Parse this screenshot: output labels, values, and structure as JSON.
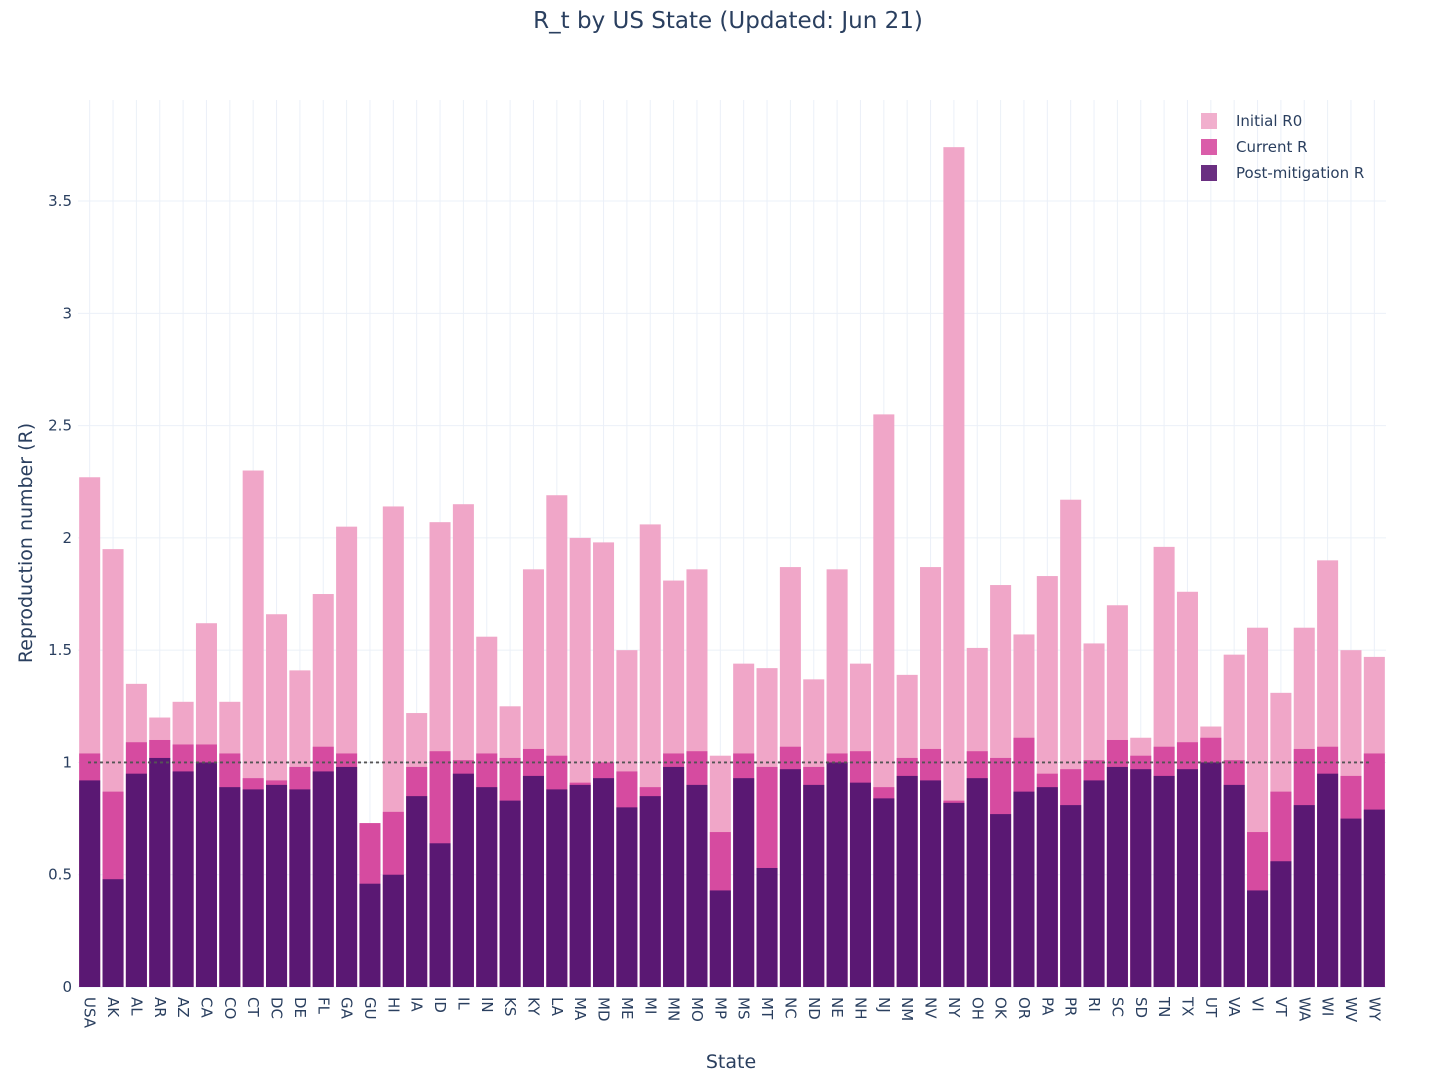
{
  "chart_data": {
    "type": "bar",
    "barmode": "overlay",
    "title": "R_t by US State (Updated: Jun 21)",
    "xlabel": "State",
    "ylabel": "Reproduction number (R)",
    "ylim": [
      0,
      3.95
    ],
    "yticks": [
      0,
      0.5,
      1,
      1.5,
      2,
      2.5,
      3,
      3.5
    ],
    "ytick_labels": [
      "0",
      "0.5",
      "1",
      "1.5",
      "2",
      "2.5",
      "3",
      "3.5"
    ],
    "reference_line": {
      "y": 1,
      "style": "dotted"
    },
    "grid": true,
    "legend_position": "top-right",
    "categories": [
      "USA",
      "AK",
      "AL",
      "AR",
      "AZ",
      "CA",
      "CO",
      "CT",
      "DC",
      "DE",
      "FL",
      "GA",
      "GU",
      "HI",
      "IA",
      "ID",
      "IL",
      "IN",
      "KS",
      "KY",
      "LA",
      "MA",
      "MD",
      "ME",
      "MI",
      "MN",
      "MO",
      "MP",
      "MS",
      "MT",
      "NC",
      "ND",
      "NE",
      "NH",
      "NJ",
      "NM",
      "NV",
      "NY",
      "OH",
      "OK",
      "OR",
      "PA",
      "PR",
      "RI",
      "SC",
      "SD",
      "TN",
      "TX",
      "UT",
      "VA",
      "VI",
      "VT",
      "WA",
      "WI",
      "WV",
      "WY"
    ],
    "series": [
      {
        "name": "Initial R0",
        "color": "#f0a6c8",
        "values": [
          2.27,
          1.95,
          1.35,
          1.2,
          1.27,
          1.62,
          1.27,
          2.3,
          1.66,
          1.41,
          1.75,
          2.05,
          0.72,
          2.14,
          1.22,
          2.07,
          2.15,
          1.56,
          1.25,
          1.86,
          2.19,
          2.0,
          1.98,
          1.5,
          2.06,
          1.81,
          1.86,
          1.03,
          1.44,
          1.42,
          1.87,
          1.37,
          1.86,
          1.44,
          2.55,
          1.39,
          1.87,
          3.74,
          1.51,
          1.79,
          1.57,
          1.83,
          2.17,
          1.53,
          1.7,
          1.11,
          1.96,
          1.76,
          1.16,
          1.48,
          1.6,
          1.31,
          1.6,
          1.9,
          1.5,
          1.47
        ]
      },
      {
        "name": "Current R",
        "color": "#d64ba0",
        "values": [
          1.04,
          0.87,
          1.09,
          1.1,
          1.08,
          1.08,
          1.04,
          0.93,
          0.92,
          0.98,
          1.07,
          1.04,
          0.73,
          0.78,
          0.98,
          1.05,
          1.01,
          1.04,
          1.02,
          1.06,
          1.03,
          0.91,
          1.0,
          0.96,
          0.89,
          1.04,
          1.05,
          0.69,
          1.04,
          0.98,
          1.07,
          0.98,
          1.04,
          1.05,
          0.89,
          1.02,
          1.06,
          0.83,
          1.05,
          1.02,
          1.11,
          0.95,
          0.97,
          1.01,
          1.1,
          1.03,
          1.07,
          1.09,
          1.11,
          1.01,
          0.69,
          0.87,
          1.06,
          1.07,
          0.94,
          1.04
        ]
      },
      {
        "name": "Post-mitigation R",
        "color": "#5a1873",
        "values": [
          0.92,
          0.48,
          0.95,
          1.02,
          0.96,
          1.0,
          0.89,
          0.88,
          0.9,
          0.88,
          0.96,
          0.98,
          0.46,
          0.5,
          0.85,
          0.64,
          0.95,
          0.89,
          0.83,
          0.94,
          0.88,
          0.9,
          0.93,
          0.8,
          0.85,
          0.98,
          0.9,
          0.43,
          0.93,
          0.53,
          0.97,
          0.9,
          1.0,
          0.91,
          0.84,
          0.94,
          0.92,
          0.82,
          0.93,
          0.77,
          0.87,
          0.89,
          0.81,
          0.92,
          0.98,
          0.97,
          0.94,
          0.97,
          1.0,
          0.9,
          0.43,
          0.56,
          0.81,
          0.95,
          0.75,
          0.79
        ]
      }
    ]
  }
}
